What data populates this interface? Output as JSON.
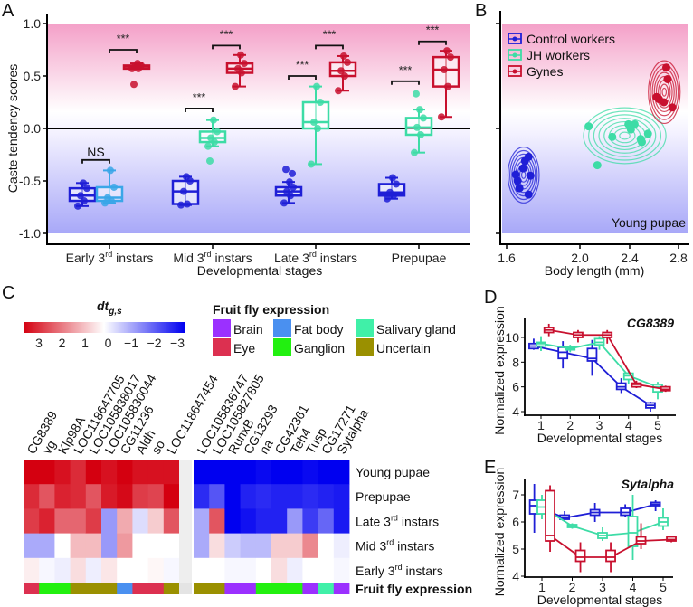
{
  "colors": {
    "control": "#1f1fd6",
    "jh": "#3ddca6",
    "jh_early": "#3aa6e8",
    "gyne": "#c8102e",
    "heat_pos": "#d40010",
    "heat_neg": "#0000f0",
    "band_top": "#f4a0c8",
    "band_bottom": "#a8a8f8"
  },
  "chart_data": [
    {
      "panel": "A",
      "type": "box",
      "xlabel": "Developmental stages",
      "ylabel": "Caste tendency scores",
      "ylim": [
        -1.0,
        1.0
      ],
      "yticks": [
        "1.0",
        "0.5",
        "0.0",
        "-0.5",
        "-1.0"
      ],
      "ytick_values": [
        1.0,
        0.5,
        0.0,
        -0.5,
        -1.0
      ],
      "categories": [
        "Early 3rd instars",
        "Mid 3rd instars",
        "Late 3rd instars",
        "Prepupae"
      ],
      "series": [
        {
          "key": "control",
          "boxes": [
            {
              "lo": -0.74,
              "q1": -0.69,
              "med": -0.64,
              "q3": -0.57,
              "hi": -0.52
            },
            {
              "lo": -0.73,
              "q1": -0.72,
              "med": -0.6,
              "q3": -0.5,
              "hi": -0.46
            },
            {
              "lo": -0.71,
              "q1": -0.64,
              "med": -0.6,
              "q3": -0.56,
              "hi": -0.51,
              "outliers": [
                -0.39,
                -0.43
              ]
            },
            {
              "lo": -0.67,
              "q1": -0.64,
              "med": -0.61,
              "q3": -0.53,
              "hi": -0.47
            }
          ]
        },
        {
          "key": "jh",
          "boxes": [
            {
              "lo": -0.71,
              "q1": -0.69,
              "med": -0.66,
              "q3": -0.56,
              "hi": -0.4
            },
            {
              "lo": -0.17,
              "q1": -0.13,
              "med": -0.09,
              "q3": -0.03,
              "hi": 0.08,
              "outliers": [
                -0.31
              ]
            },
            {
              "lo": -0.34,
              "q1": 0.0,
              "med": 0.06,
              "q3": 0.25,
              "hi": 0.4
            },
            {
              "lo": -0.23,
              "q1": -0.06,
              "med": 0.01,
              "q3": 0.1,
              "hi": 0.18,
              "outliers": [
                0.33
              ]
            }
          ]
        },
        {
          "key": "gyne",
          "boxes": [
            {
              "lo": 0.57,
              "q1": 0.57,
              "med": 0.59,
              "q3": 0.6,
              "hi": 0.62,
              "outliers": [
                0.42
              ]
            },
            {
              "lo": 0.4,
              "q1": 0.53,
              "med": 0.57,
              "q3": 0.62,
              "hi": 0.7
            },
            {
              "lo": 0.36,
              "q1": 0.5,
              "med": 0.55,
              "q3": 0.63,
              "hi": 0.69
            },
            {
              "lo": 0.11,
              "q1": 0.4,
              "med": 0.56,
              "q3": 0.68,
              "hi": 0.74
            }
          ]
        }
      ],
      "significance": [
        {
          "stage": 0,
          "from": "control",
          "to": "jh",
          "y": -0.3,
          "label": "NS"
        },
        {
          "stage": 0,
          "from": "jh",
          "to": "gyne",
          "y": 0.75,
          "label": "***"
        },
        {
          "stage": 1,
          "from": "control",
          "to": "jh",
          "y": 0.19,
          "label": "***"
        },
        {
          "stage": 1,
          "from": "jh",
          "to": "gyne",
          "y": 0.79,
          "label": "***"
        },
        {
          "stage": 2,
          "from": "control",
          "to": "jh",
          "y": 0.5,
          "label": "***"
        },
        {
          "stage": 2,
          "from": "jh",
          "to": "gyne",
          "y": 0.79,
          "label": "***"
        },
        {
          "stage": 3,
          "from": "control",
          "to": "jh",
          "y": 0.45,
          "label": "***"
        },
        {
          "stage": 3,
          "from": "jh",
          "to": "gyne",
          "y": 0.83,
          "label": "***"
        }
      ]
    },
    {
      "panel": "B",
      "type": "scatter-density",
      "xlabel": "Body length (mm)",
      "xticks": [
        "1.6",
        "2.0",
        "2.4",
        "2.8"
      ],
      "xtick_values": [
        1.6,
        2.0,
        2.4,
        2.8
      ],
      "ylim": [
        -1.0,
        1.0
      ],
      "annotation": "Young pupae",
      "legend": [
        {
          "key": "control",
          "label": "Control workers"
        },
        {
          "key": "jh",
          "label": "JH workers"
        },
        {
          "key": "gyne",
          "label": "Gynes"
        }
      ],
      "legend_position": "top-left",
      "series": [
        {
          "key": "control",
          "points": [
            [
              1.65,
              -0.44
            ],
            [
              1.66,
              -0.5
            ],
            [
              1.67,
              -0.57
            ],
            [
              1.7,
              -0.31
            ],
            [
              1.72,
              -0.27
            ],
            [
              1.73,
              -0.45
            ],
            [
              1.72,
              -0.63
            ],
            [
              1.69,
              -0.38
            ]
          ]
        },
        {
          "key": "jh",
          "points": [
            [
              2.07,
              0.02
            ],
            [
              2.26,
              -0.08
            ],
            [
              2.39,
              0.04
            ],
            [
              2.44,
              0.04
            ],
            [
              2.41,
              -0.01
            ],
            [
              2.49,
              -0.1
            ],
            [
              2.55,
              -0.05
            ],
            [
              2.5,
              -0.13
            ],
            [
              2.14,
              -0.35
            ]
          ]
        },
        {
          "key": "gyne",
          "points": [
            [
              2.62,
              0.3
            ],
            [
              2.64,
              0.28
            ],
            [
              2.68,
              0.25
            ],
            [
              2.75,
              0.2
            ],
            [
              2.7,
              0.58
            ],
            [
              2.71,
              0.47
            ]
          ]
        }
      ]
    },
    {
      "panel": "C",
      "type": "heatmap",
      "colorbar_title": "dt",
      "colorbar_subscript": "g,s",
      "colorbar_ticks": [
        "3",
        "2",
        "1",
        "0",
        "−1",
        "−2",
        "−3"
      ],
      "colorbar_range": [
        3,
        -3
      ],
      "legend_title": "Fruit fly expression",
      "legend": [
        {
          "label": "Brain",
          "color": "#9b30ff"
        },
        {
          "label": "Eye",
          "color": "#dc3050"
        },
        {
          "label": "Fat body",
          "color": "#4a90f0"
        },
        {
          "label": "Ganglion",
          "color": "#22f010"
        },
        {
          "label": "Salivary gland",
          "color": "#40f0a8"
        },
        {
          "label": "Uncertain",
          "color": "#9a9000"
        }
      ],
      "genes_left": [
        "CG8389",
        "vg",
        "Klp98A",
        "LOC118647705",
        "LOC105838017",
        "LOC105830044",
        "CG11236",
        "Aldh",
        "so",
        "LOC118647454"
      ],
      "genes_right": [
        "LOC105836747",
        "LOC105827805",
        "RunxB",
        "CG13293",
        "na",
        "CG42361",
        "Teh4",
        "Tusp",
        "CG17271",
        "Sytalpha"
      ],
      "rows": [
        "Young pupae",
        "Prepupae",
        "Late 3rd instars",
        "Mid 3rd instars",
        "Early 3rd instars"
      ],
      "annotation_row_label": "Fruit fly expression",
      "values_left": [
        [
          3.0,
          3.0,
          2.8,
          2.5,
          3.0,
          2.8,
          3.0,
          2.8,
          2.8,
          2.8
        ],
        [
          2.5,
          2.0,
          2.6,
          2.5,
          2.0,
          2.7,
          2.9,
          2.3,
          2.2,
          3.0
        ],
        [
          2.3,
          2.6,
          1.8,
          1.8,
          2.3,
          -1.2,
          1.0,
          -0.4,
          0.6,
          2.0
        ],
        [
          -1.0,
          -1.0,
          0.0,
          0.8,
          0.8,
          -1.2,
          1.2,
          0.0,
          0.0,
          0.0
        ],
        [
          0.2,
          -0.1,
          -0.2,
          0.4,
          -0.2,
          0.3,
          0.0,
          0.0,
          0.1,
          -0.1
        ]
      ],
      "values_right": [
        [
          -3.0,
          -3.0,
          -3.0,
          -3.0,
          -2.9,
          -3.0,
          -3.0,
          -2.9,
          -3.0,
          -3.0
        ],
        [
          -2.5,
          -2.0,
          -3.0,
          -2.6,
          -2.5,
          -2.6,
          -2.6,
          -2.5,
          -2.6,
          -2.7
        ],
        [
          -1.0,
          2.0,
          -3.0,
          -2.8,
          -2.6,
          -2.6,
          -1.2,
          -2.3,
          -1.8,
          -2.7
        ],
        [
          -1.0,
          0.4,
          -0.6,
          -0.8,
          -0.8,
          0.6,
          0.6,
          1.4,
          0.0,
          -0.2
        ],
        [
          0.0,
          0.0,
          -0.1,
          -0.1,
          0.0,
          0.4,
          -0.2,
          0.0,
          0.0,
          -0.1
        ]
      ],
      "tissue_left": [
        "Eye",
        "Ganglion",
        "Ganglion",
        "Uncertain",
        "Uncertain",
        "Uncertain",
        "Fat body",
        "Eye",
        "Eye",
        "Uncertain"
      ],
      "tissue_right": [
        "Uncertain",
        "Uncertain",
        "Brain",
        "Brain",
        "Ganglion",
        "Ganglion",
        "Ganglion",
        "Brain",
        "Salivary gland",
        "Brain"
      ]
    },
    {
      "panel": "D",
      "type": "box-line",
      "title": "CG8389",
      "xlabel": "Developmental stages",
      "ylabel": "Normalized expression",
      "xticks": [
        "1",
        "2",
        "3",
        "4",
        "5"
      ],
      "yticks": [
        "10",
        "8",
        "6",
        "4"
      ],
      "ytick_values": [
        10,
        8,
        6,
        4
      ],
      "series": [
        {
          "key": "control",
          "boxes": [
            [
              9.3,
              9.1,
              9.5,
              9.0,
              9.9
            ],
            [
              8.8,
              8.3,
              9.2,
              7.5,
              9.7
            ],
            [
              8.3,
              8.1,
              9.1,
              6.9,
              9.8
            ],
            [
              6.0,
              5.8,
              6.3,
              5.5,
              6.7
            ],
            [
              4.5,
              4.3,
              4.7,
              4.0,
              4.8
            ]
          ]
        },
        {
          "key": "jh",
          "boxes": [
            [
              9.5,
              9.3,
              9.6,
              8.9,
              10.1
            ],
            [
              9.1,
              9.0,
              9.2,
              8.8,
              9.4
            ],
            [
              9.6,
              9.4,
              9.9,
              9.0,
              10.1
            ],
            [
              6.9,
              6.6,
              7.1,
              6.2,
              7.4
            ],
            [
              6.0,
              5.6,
              6.2,
              5.0,
              6.4
            ]
          ]
        },
        {
          "key": "gyne",
          "boxes": [
            [
              10.6,
              10.4,
              10.8,
              10.1,
              11.1
            ],
            [
              10.2,
              10.0,
              10.4,
              9.6,
              10.6
            ],
            [
              10.2,
              10.0,
              10.4,
              9.5,
              10.6
            ],
            [
              6.2,
              6.0,
              6.3,
              5.9,
              6.5
            ],
            [
              5.8,
              5.7,
              6.0,
              5.6,
              6.1
            ]
          ]
        }
      ],
      "box_fields": [
        "median",
        "q1",
        "q3",
        "min",
        "max"
      ]
    },
    {
      "panel": "E",
      "type": "box-line",
      "title": "Sytalpha",
      "xlabel": "Developmental stages",
      "ylabel": "Normalized expression",
      "xticks": [
        "1",
        "2",
        "3",
        "4",
        "5"
      ],
      "yticks": [
        "7",
        "6",
        "5",
        "4"
      ],
      "ytick_values": [
        7,
        6,
        5,
        4
      ],
      "series": [
        {
          "key": "control",
          "boxes": [
            [
              6.6,
              6.3,
              6.8,
              5.6,
              7.4
            ],
            [
              6.15,
              6.1,
              6.25,
              6.0,
              6.4
            ],
            [
              6.35,
              6.25,
              6.45,
              6.0,
              6.7
            ],
            [
              6.35,
              6.25,
              6.5,
              6.2,
              6.65
            ],
            [
              6.65,
              6.6,
              6.72,
              6.4,
              6.8
            ]
          ]
        },
        {
          "key": "jh",
          "boxes": [
            [
              6.55,
              6.3,
              6.8,
              6.1,
              7.0
            ],
            [
              5.85,
              5.8,
              5.9,
              5.75,
              5.95
            ],
            [
              5.5,
              5.4,
              5.6,
              5.3,
              5.8
            ],
            [
              5.6,
              5.1,
              6.2,
              4.6,
              7.0
            ],
            [
              6.0,
              5.85,
              6.15,
              5.7,
              6.5
            ]
          ]
        },
        {
          "key": "gyne",
          "boxes": [
            [
              5.5,
              5.3,
              7.15,
              4.9,
              7.35
            ],
            [
              4.7,
              4.55,
              4.95,
              4.15,
              5.25
            ],
            [
              4.7,
              4.55,
              4.95,
              4.15,
              5.25
            ],
            [
              5.3,
              5.2,
              5.45,
              5.0,
              5.95
            ],
            [
              5.35,
              5.3,
              5.45,
              5.25,
              5.45
            ]
          ]
        }
      ],
      "box_fields": [
        "median",
        "q1",
        "q3",
        "min",
        "max"
      ]
    }
  ],
  "panel_letters": [
    "A",
    "B",
    "C",
    "D",
    "E"
  ]
}
